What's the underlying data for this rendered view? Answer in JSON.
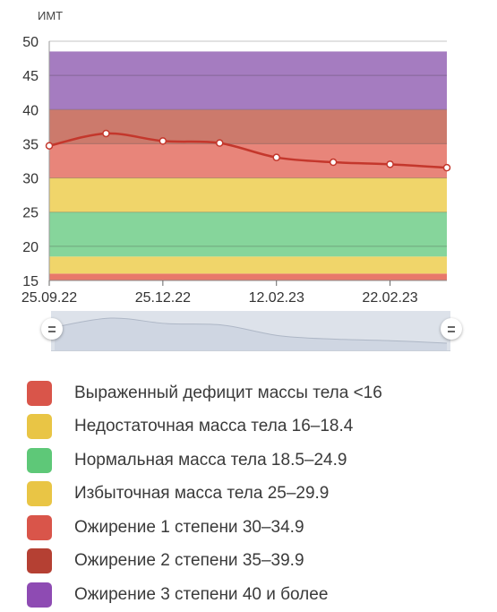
{
  "chart_data": {
    "type": "line",
    "ylabel": "ИМТ",
    "ylim": [
      15,
      50
    ],
    "yticks": [
      "15",
      "20",
      "25",
      "30",
      "35",
      "40",
      "45",
      "50"
    ],
    "x_tick_labels": [
      "25.09.22",
      "25.12.22",
      "12.02.23",
      "22.02.23"
    ],
    "x_tick_positions": [
      0,
      2,
      4,
      6
    ],
    "series": [
      {
        "values": [
          34.7,
          36.5,
          35.4,
          35.1,
          33.0,
          32.3,
          32.0,
          31.5
        ]
      }
    ],
    "bands": [
      {
        "from": 15,
        "to": 16,
        "color": "#e8786a"
      },
      {
        "from": 16,
        "to": 18.5,
        "color": "#f0d56a"
      },
      {
        "from": 18.5,
        "to": 25,
        "color": "#86d59b"
      },
      {
        "from": 25,
        "to": 30,
        "color": "#f0d56a"
      },
      {
        "from": 30,
        "to": 35,
        "color": "#e8857a"
      },
      {
        "from": 35,
        "to": 40,
        "color": "#cc7a6c"
      },
      {
        "from": 40,
        "to": 48.5,
        "color": "#a57cc0"
      }
    ],
    "line_color": "#c4372c",
    "grid": true
  },
  "legend": [
    {
      "label": "Выраженный дефицит массы тела <16",
      "color": "#d9554a"
    },
    {
      "label": "Недостаточная масса тела 16–18.4",
      "color": "#e9c545"
    },
    {
      "label": "Нормальная масса тела 18.5–24.9",
      "color": "#5ec878"
    },
    {
      "label": "Избыточная масса тела 25–29.9",
      "color": "#e9c545"
    },
    {
      "label": "Ожирение 1 степени 30–34.9",
      "color": "#d9554a"
    },
    {
      "label": "Ожирение 2 степени 35–39.9",
      "color": "#b54033"
    },
    {
      "label": "Ожирение 3 степени 40 и более",
      "color": "#8e4bb3"
    }
  ]
}
